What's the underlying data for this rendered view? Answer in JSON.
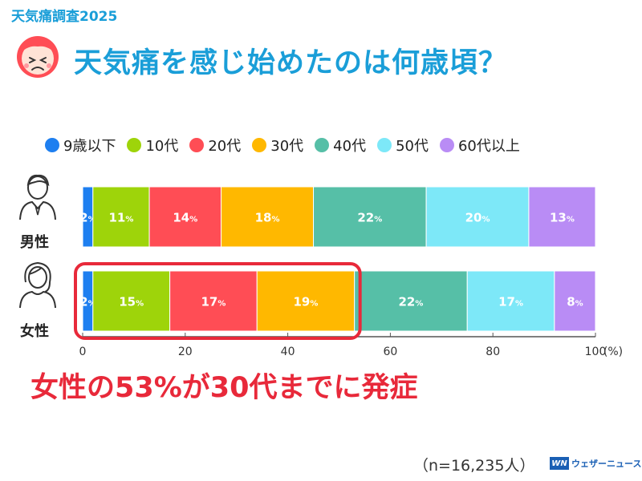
{
  "header": {
    "tag": "天気痛調査2025",
    "title": "天気痛を感じ始めたのは何歳頃？"
  },
  "legend": [
    {
      "label": "9歳以下",
      "color": "#1e7ff0"
    },
    {
      "label": "10代",
      "color": "#9ed40a"
    },
    {
      "label": "20代",
      "color": "#ff4d55"
    },
    {
      "label": "30代",
      "color": "#ffb800"
    },
    {
      "label": "40代",
      "color": "#56bfa7"
    },
    {
      "label": "50代",
      "color": "#7de8f8"
    },
    {
      "label": "60代以上",
      "color": "#b98cf5"
    }
  ],
  "chart_data": {
    "type": "bar",
    "orientation": "horizontal-stacked",
    "categories": [
      "男性",
      "女性"
    ],
    "series": [
      {
        "name": "9歳以下",
        "values": [
          2,
          2
        ]
      },
      {
        "name": "10代",
        "values": [
          11,
          15
        ]
      },
      {
        "name": "20代",
        "values": [
          14,
          17
        ]
      },
      {
        "name": "30代",
        "values": [
          18,
          19
        ]
      },
      {
        "name": "40代",
        "values": [
          22,
          22
        ]
      },
      {
        "name": "50代",
        "values": [
          20,
          17
        ]
      },
      {
        "name": "60代以上",
        "values": [
          13,
          8
        ]
      }
    ],
    "xlim": [
      0,
      100
    ],
    "xticks": [
      "0",
      "20",
      "40",
      "60",
      "80",
      "100"
    ],
    "unit": "(%)",
    "value_suffix": "%",
    "highlight": {
      "category": "女性",
      "through_series": "30代"
    }
  },
  "headline": "女性の53%が30代までに発症",
  "footnote": "（n=16,235人）",
  "brand": {
    "mark": "WN",
    "name": "ウェザーニュース"
  }
}
